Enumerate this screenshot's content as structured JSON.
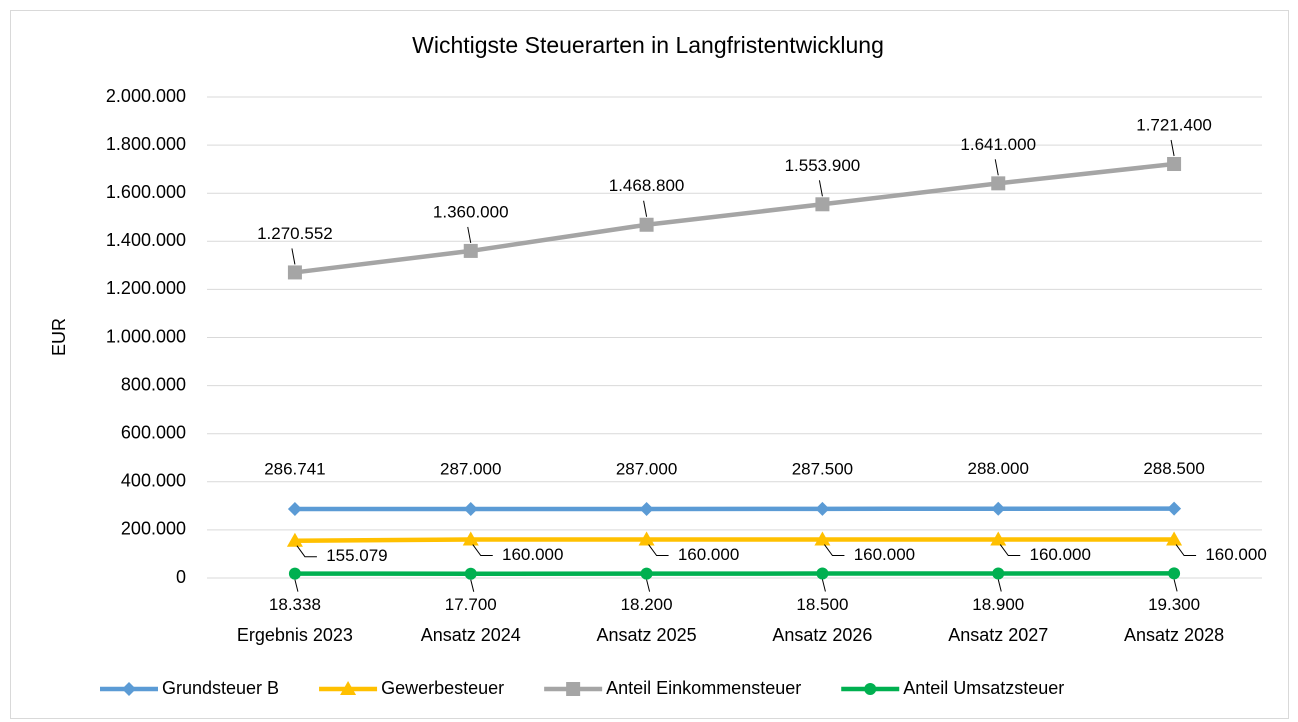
{
  "chart_data": {
    "type": "line",
    "title": "Wichtigste Steuerarten in Langfristentwicklung",
    "y_label": "EUR",
    "categories": [
      "Ergebnis 2023",
      "Ansatz 2024",
      "Ansatz 2025",
      "Ansatz 2026",
      "Ansatz 2027",
      "Ansatz 2028"
    ],
    "series": [
      {
        "name": "Grundsteuer B",
        "color": "#5b9bd5",
        "marker": "diamond",
        "values": [
          286741,
          287000,
          287000,
          287500,
          288000,
          288500
        ],
        "value_labels": [
          "286.741",
          "287.000",
          "287.000",
          "287.500",
          "288.000",
          "288.500"
        ]
      },
      {
        "name": "Gewerbesteuer",
        "color": "#ffc000",
        "marker": "triangle",
        "values": [
          155079,
          160000,
          160000,
          160000,
          160000,
          160000
        ],
        "value_labels": [
          "155.079",
          "160.000",
          "160.000",
          "160.000",
          "160.000",
          "160.000"
        ]
      },
      {
        "name": "Anteil Einkommensteuer",
        "color": "#a5a5a5",
        "marker": "square",
        "values": [
          1270552,
          1360000,
          1468800,
          1553900,
          1641000,
          1721400
        ],
        "value_labels": [
          "1.270.552",
          "1.360.000",
          "1.468.800",
          "1.553.900",
          "1.641.000",
          "1.721.400"
        ]
      },
      {
        "name": "Anteil Umsatzsteuer",
        "color": "#00b050",
        "marker": "circle",
        "values": [
          18338,
          17700,
          18200,
          18500,
          18900,
          19300
        ],
        "value_labels": [
          "18.338",
          "17.700",
          "18.200",
          "18.500",
          "18.900",
          "19.300"
        ]
      }
    ],
    "ylim": [
      0,
      2000000
    ],
    "yticks": [
      0,
      {
        "value": 200000,
        "label": "200.000"
      },
      {
        "value": 400000,
        "label": "400.000"
      },
      {
        "value": 600000,
        "label": "600.000"
      },
      {
        "value": 800000,
        "label": "800.000"
      },
      {
        "value": 1000000,
        "label": "1.000.000"
      },
      {
        "value": 1200000,
        "label": "1.200.000"
      },
      {
        "value": 1400000,
        "label": "1.400.000"
      },
      {
        "value": 1600000,
        "label": "1.600.000"
      },
      {
        "value": 1800000,
        "label": "1.800.000"
      },
      {
        "value": 2000000,
        "label": "2.000.000"
      }
    ],
    "grid": true,
    "legend": "bottom"
  }
}
